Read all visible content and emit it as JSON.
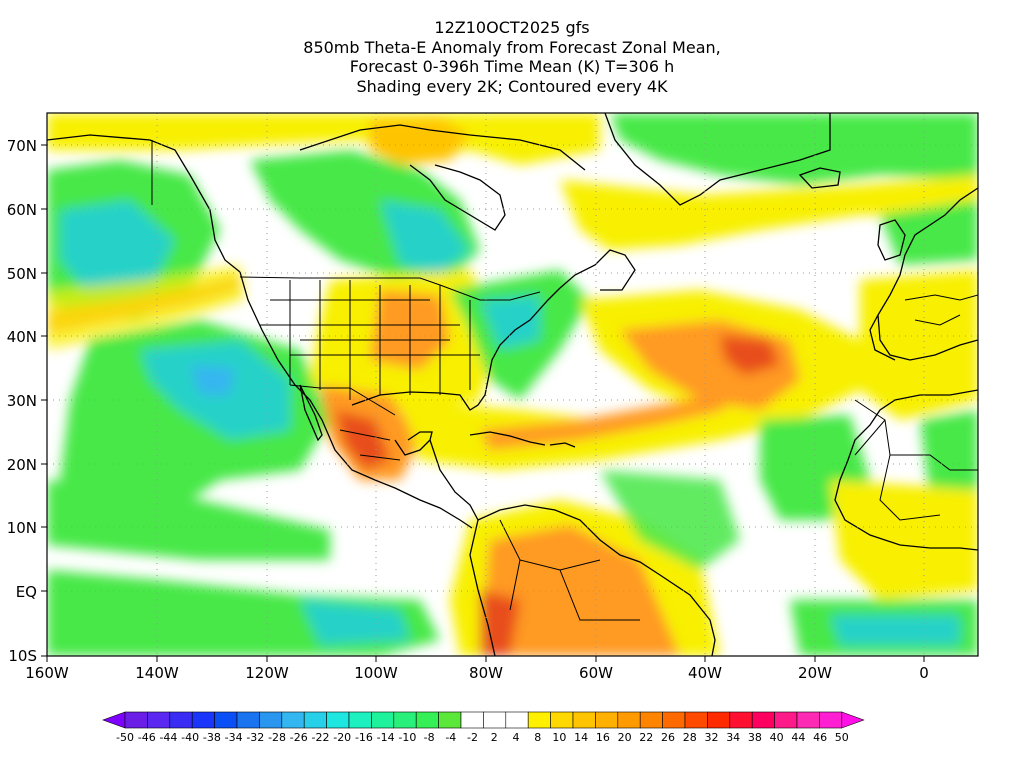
{
  "title_lines": [
    "12Z10OCT2025 gfs",
    "850mb Theta-E Anomaly from Forecast Zonal Mean,",
    "Forecast 0-396h Time Mean (K) T=306 h",
    "Shading every 2K; Contoured every 4K"
  ],
  "map": {
    "lon_range": [
      -160,
      10
    ],
    "lat_range": [
      -10,
      75
    ],
    "x_ticks": [
      "160W",
      "140W",
      "120W",
      "100W",
      "80W",
      "60W",
      "40W",
      "20W",
      "0"
    ],
    "y_ticks": [
      "10S",
      "EQ",
      "10N",
      "20N",
      "30N",
      "40N",
      "50N",
      "60N",
      "70N"
    ],
    "grid": "dotted"
  },
  "colorbar": {
    "labels": [
      "-50",
      "-46",
      "-44",
      "-40",
      "-38",
      "-34",
      "-32",
      "-28",
      "-26",
      "-22",
      "-20",
      "-16",
      "-14",
      "-10",
      "-8",
      "-4",
      "-2",
      "2",
      "4",
      "8",
      "10",
      "14",
      "16",
      "20",
      "22",
      "26",
      "28",
      "32",
      "34",
      "38",
      "40",
      "44",
      "46",
      "50"
    ],
    "colors": [
      "#7e00ff",
      "#6a1ee6",
      "#5a28f0",
      "#3a2cf5",
      "#1a36fa",
      "#0a4ef5",
      "#1a74f0",
      "#2a96f0",
      "#34b6f0",
      "#28cfe8",
      "#1ee6e0",
      "#1ef0c0",
      "#1ef29a",
      "#28f07a",
      "#34f056",
      "#5ce83a",
      "#ffffff",
      "#ffffff",
      "#ffffff",
      "#fff000",
      "#ffd800",
      "#ffc400",
      "#ffb000",
      "#ff9a00",
      "#ff8400",
      "#ff6a00",
      "#ff4a00",
      "#ff2a00",
      "#ff1030",
      "#ff0060",
      "#ff1a8a",
      "#ff2ab4",
      "#ff1ed2",
      "#ff10e6"
    ]
  },
  "colors": {
    "green": "#46e846",
    "cyan": "#28d2c8",
    "yellow": "#f8f000",
    "orange": "#ff9a20",
    "red": "#e84e1c"
  }
}
